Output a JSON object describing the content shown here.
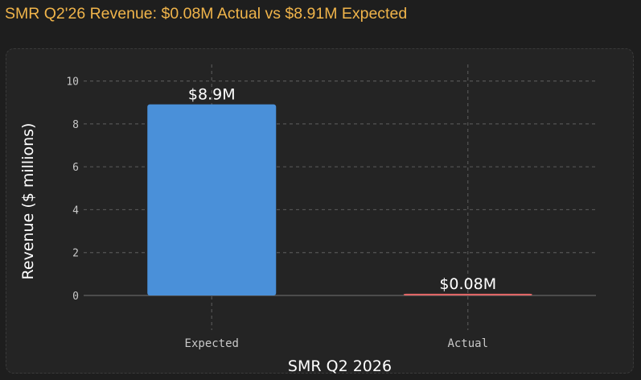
{
  "title": "SMR Q2'26 Revenue: $0.08M Actual vs $8.91M Expected",
  "colors": {
    "title": "#f0b44a",
    "background": "#1e1e1e",
    "panel": "#242424",
    "expected_bar": "#4a90d9",
    "actual_bar": "#e06666",
    "grid": "#555555",
    "text": "#ffffff",
    "tick_text": "#c8c8c8"
  },
  "chart_data": {
    "type": "bar",
    "categories": [
      "Expected",
      "Actual"
    ],
    "values": [
      8.91,
      0.08
    ],
    "data_labels": [
      "$8.9M",
      "$0.08M"
    ],
    "bar_colors": [
      "#4a90d9",
      "#e06666"
    ],
    "xlabel": "SMR Q2 2026",
    "ylabel": "Revenue ($ millions)",
    "ylim": [
      0,
      11
    ],
    "yticks": [
      0,
      2,
      4,
      6,
      8,
      10
    ],
    "grid": true
  }
}
